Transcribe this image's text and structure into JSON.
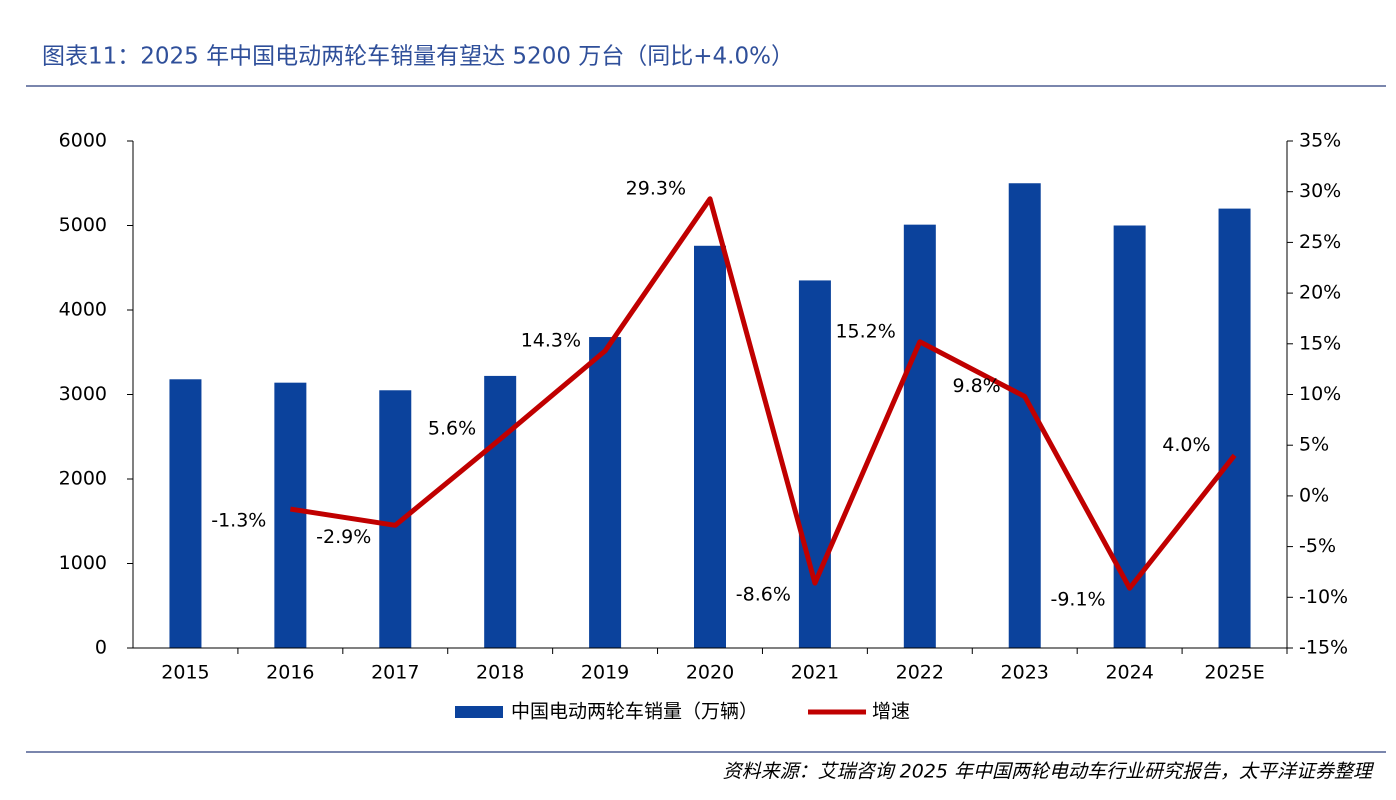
{
  "chart_data": {
    "type": "bar_line",
    "title": "图表11：2025 年中国电动两轮车销量有望达 5200 万台（同比+4.0%）",
    "source": "资料来源：艾瑞咨询 2025 年中国两轮电动车行业研究报告，太平洋证券整理",
    "categories": [
      "2015",
      "2016",
      "2017",
      "2018",
      "2019",
      "2020",
      "2021",
      "2022",
      "2023",
      "2024",
      "2025E"
    ],
    "series": [
      {
        "name": "中国电动两轮车销量（万辆）",
        "type": "bar",
        "color": "#0b429c",
        "values": [
          3180,
          3140,
          3050,
          3220,
          3680,
          4760,
          4350,
          5010,
          5500,
          5000,
          5200
        ]
      },
      {
        "name": "增速",
        "type": "line",
        "axis": "y2",
        "color": "#c00000",
        "values": [
          null,
          -1.3,
          -2.9,
          5.6,
          14.3,
          29.3,
          -8.6,
          15.2,
          9.8,
          -9.1,
          4.0
        ],
        "value_labels": [
          null,
          "-1.3%",
          "-2.9%",
          "5.6%",
          "14.3%",
          "29.3%",
          "-8.6%",
          "15.2%",
          "9.8%",
          "-9.1%",
          "4.0%"
        ]
      }
    ],
    "ylim": [
      0,
      6000
    ],
    "yticks": [
      0,
      1000,
      2000,
      3000,
      4000,
      5000,
      6000
    ],
    "y2lim": [
      -15,
      35
    ],
    "y2ticks": [
      {
        "value": -15,
        "label": "-15%"
      },
      {
        "value": -10,
        "label": "-10%"
      },
      {
        "value": -5,
        "label": "-5%"
      },
      {
        "value": 0,
        "label": "0%"
      },
      {
        "value": 5,
        "label": "5%"
      },
      {
        "value": 10,
        "label": "10%"
      },
      {
        "value": 15,
        "label": "15%"
      },
      {
        "value": 20,
        "label": "20%"
      },
      {
        "value": 25,
        "label": "25%"
      },
      {
        "value": 30,
        "label": "30%"
      },
      {
        "value": 35,
        "label": "35%"
      }
    ],
    "legend": "bottom"
  }
}
